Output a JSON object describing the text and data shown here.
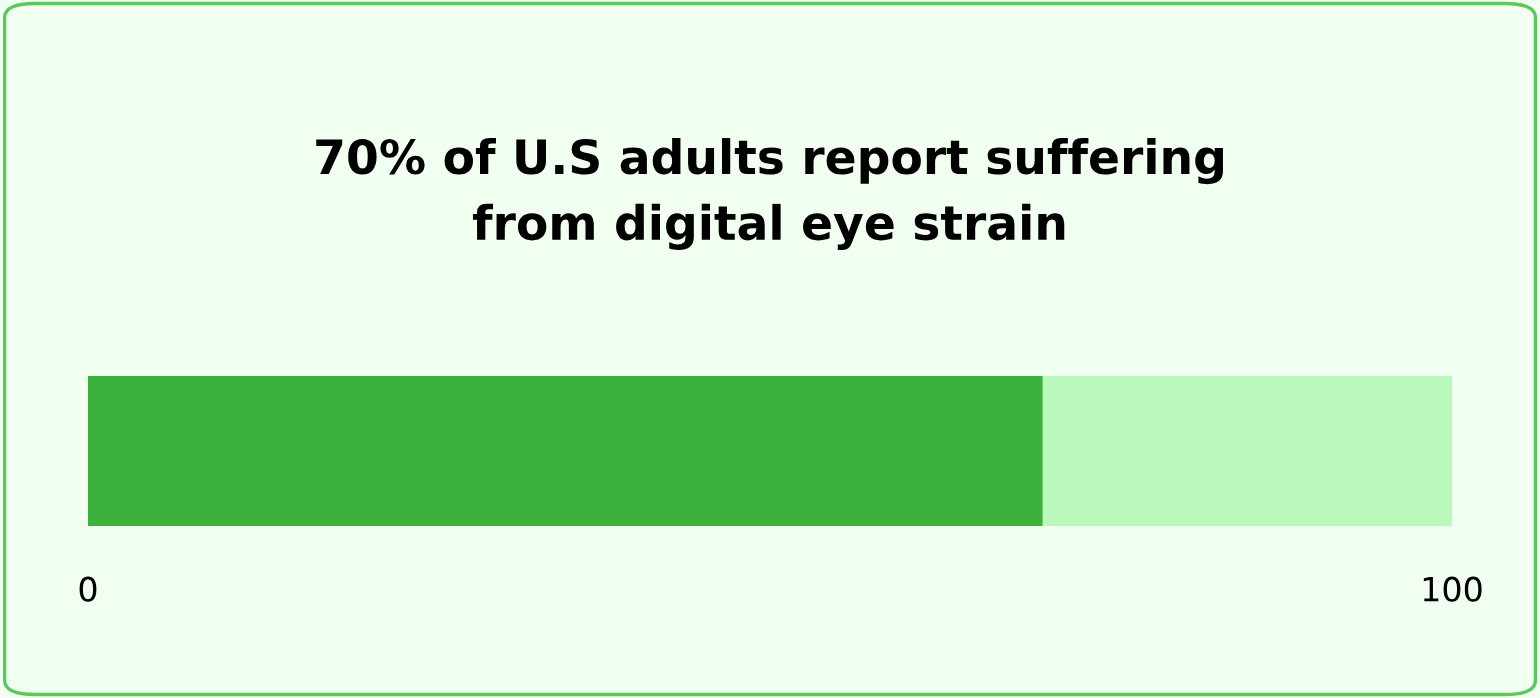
{
  "chart_data": {
    "type": "bar",
    "orientation": "horizontal",
    "stacked": true,
    "title": "70% of U.S adults report suffering\nfrom digital eye strain",
    "categories": [
      null
    ],
    "series": [
      {
        "color": "#3cb13c",
        "values": [
          70
        ]
      },
      {
        "color": "#bbf8bb",
        "values": [
          30
        ]
      }
    ],
    "xlim": [
      0,
      100
    ],
    "xticks": [
      0,
      100
    ],
    "grid": false,
    "legend": false,
    "tick_labels": "x"
  }
}
